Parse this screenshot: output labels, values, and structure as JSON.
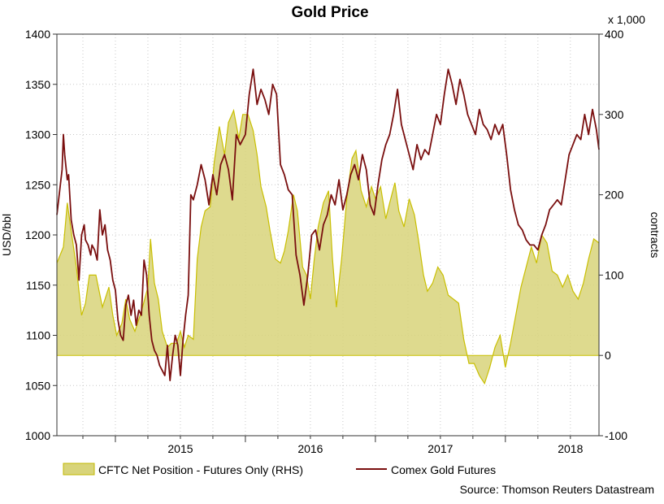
{
  "chart_data": {
    "type": "line+area",
    "title": "Gold Price",
    "ylabel_left": "USD/bbl",
    "ylabel_right": "contracts",
    "right_axis_multiplier": "x 1,000",
    "ylim_left": [
      1000,
      1400
    ],
    "ylim_right": [
      -100,
      400
    ],
    "yticks_left": [
      "1000",
      "1050",
      "1100",
      "1150",
      "1200",
      "1250",
      "1300",
      "1350",
      "1400"
    ],
    "yticks_right": [
      "-100",
      "0",
      "100",
      "200",
      "300",
      "400"
    ],
    "xlim": [
      2014.55,
      2018.72
    ],
    "x_year_labels": [
      "2015",
      "2016",
      "2017",
      "2018"
    ],
    "grid": true,
    "legend_position": "bottom",
    "series": [
      {
        "name": "CFTC Net Position - Futures Only (RHS)",
        "type": "area",
        "axis": "right",
        "color": "#d8d47a",
        "x": [
          2014.55,
          2014.6,
          2014.63,
          2014.66,
          2014.7,
          2014.74,
          2014.77,
          2014.8,
          2014.85,
          2014.9,
          2014.95,
          2014.98,
          2015.01,
          2015.05,
          2015.08,
          2015.11,
          2015.15,
          2015.2,
          2015.25,
          2015.27,
          2015.3,
          2015.33,
          2015.36,
          2015.4,
          2015.43,
          2015.47,
          2015.5,
          2015.53,
          2015.56,
          2015.6,
          2015.63,
          2015.66,
          2015.69,
          2015.73,
          2015.76,
          2015.8,
          2015.84,
          2015.87,
          2015.91,
          2015.95,
          2015.98,
          2016.02,
          2016.06,
          2016.09,
          2016.12,
          2016.16,
          2016.19,
          2016.23,
          2016.27,
          2016.3,
          2016.33,
          2016.37,
          2016.4,
          2016.44,
          2016.47,
          2016.5,
          2016.53,
          2016.56,
          2016.6,
          2016.64,
          2016.67,
          2016.7,
          2016.74,
          2016.78,
          2016.82,
          2016.85,
          2016.89,
          2016.93,
          2016.97,
          2017.0,
          2017.04,
          2017.08,
          2017.11,
          2017.15,
          2017.18,
          2017.22,
          2017.26,
          2017.3,
          2017.33,
          2017.37,
          2017.4,
          2017.44,
          2017.48,
          2017.52,
          2017.56,
          2017.6,
          2017.64,
          2017.68,
          2017.72,
          2017.76,
          2017.8,
          2017.84,
          2017.88,
          2017.92,
          2017.96,
          2018.0,
          2018.04,
          2018.08,
          2018.12,
          2018.16,
          2018.2,
          2018.24,
          2018.28,
          2018.32,
          2018.36,
          2018.4,
          2018.44,
          2018.48,
          2018.52,
          2018.56,
          2018.6,
          2018.64,
          2018.68,
          2018.72
        ],
        "values": [
          115,
          135,
          190,
          155,
          110,
          50,
          65,
          100,
          100,
          60,
          85,
          50,
          25,
          40,
          70,
          45,
          30,
          55,
          85,
          145,
          90,
          70,
          30,
          10,
          15,
          15,
          30,
          10,
          25,
          20,
          120,
          160,
          180,
          185,
          240,
          285,
          250,
          290,
          305,
          270,
          300,
          300,
          280,
          250,
          210,
          185,
          155,
          120,
          115,
          130,
          155,
          200,
          180,
          110,
          100,
          70,
          120,
          160,
          190,
          205,
          120,
          60,
          120,
          195,
          245,
          255,
          205,
          185,
          210,
          195,
          210,
          170,
          190,
          215,
          180,
          160,
          195,
          175,
          145,
          100,
          80,
          90,
          110,
          100,
          75,
          70,
          65,
          20,
          -10,
          -10,
          -25,
          -35,
          -15,
          10,
          25,
          -15,
          15,
          50,
          85,
          110,
          135,
          115,
          150,
          140,
          105,
          100,
          85,
          100,
          80,
          70,
          90,
          120,
          145,
          140
        ]
      },
      {
        "name": "Comex Gold Futures",
        "type": "line",
        "axis": "left",
        "color": "#7a0f0f",
        "x": [
          2014.55,
          2014.59,
          2014.6,
          2014.61,
          2014.63,
          2014.64,
          2014.66,
          2014.68,
          2014.7,
          2014.72,
          2014.74,
          2014.76,
          2014.77,
          2014.79,
          2014.81,
          2014.82,
          2014.84,
          2014.86,
          2014.88,
          2014.9,
          2014.92,
          2014.94,
          2014.96,
          2014.98,
          2015.0,
          2015.02,
          2015.04,
          2015.06,
          2015.08,
          2015.1,
          2015.12,
          2015.14,
          2015.16,
          2015.18,
          2015.2,
          2015.22,
          2015.24,
          2015.26,
          2015.28,
          2015.3,
          2015.32,
          2015.34,
          2015.36,
          2015.38,
          2015.4,
          2015.42,
          2015.44,
          2015.46,
          2015.48,
          2015.5,
          2015.52,
          2015.54,
          2015.56,
          2015.58,
          2015.6,
          2015.63,
          2015.66,
          2015.69,
          2015.72,
          2015.75,
          2015.78,
          2015.81,
          2015.84,
          2015.87,
          2015.9,
          2015.93,
          2015.96,
          2016.0,
          2016.03,
          2016.06,
          2016.09,
          2016.12,
          2016.15,
          2016.18,
          2016.21,
          2016.24,
          2016.27,
          2016.3,
          2016.33,
          2016.36,
          2016.39,
          2016.42,
          2016.45,
          2016.48,
          2016.51,
          2016.54,
          2016.57,
          2016.6,
          2016.63,
          2016.66,
          2016.69,
          2016.72,
          2016.75,
          2016.78,
          2016.81,
          2016.84,
          2016.87,
          2016.9,
          2016.93,
          2016.96,
          2016.99,
          2017.02,
          2017.05,
          2017.08,
          2017.11,
          2017.14,
          2017.17,
          2017.2,
          2017.23,
          2017.26,
          2017.29,
          2017.32,
          2017.35,
          2017.38,
          2017.41,
          2017.44,
          2017.47,
          2017.5,
          2017.53,
          2017.56,
          2017.59,
          2017.62,
          2017.65,
          2017.68,
          2017.71,
          2017.74,
          2017.77,
          2017.8,
          2017.83,
          2017.86,
          2017.89,
          2017.92,
          2017.95,
          2017.98,
          2018.01,
          2018.04,
          2018.07,
          2018.1,
          2018.13,
          2018.16,
          2018.19,
          2018.22,
          2018.25,
          2018.28,
          2018.31,
          2018.34,
          2018.37,
          2018.4,
          2018.43,
          2018.46,
          2018.49,
          2018.52,
          2018.55,
          2018.58,
          2018.61,
          2018.64,
          2018.67,
          2018.7,
          2018.72
        ],
        "values": [
          1220,
          1265,
          1300,
          1280,
          1255,
          1260,
          1215,
          1200,
          1190,
          1155,
          1200,
          1210,
          1195,
          1190,
          1180,
          1190,
          1185,
          1175,
          1225,
          1200,
          1210,
          1185,
          1175,
          1155,
          1145,
          1115,
          1100,
          1095,
          1130,
          1140,
          1120,
          1135,
          1110,
          1125,
          1120,
          1175,
          1160,
          1120,
          1095,
          1085,
          1080,
          1070,
          1065,
          1060,
          1090,
          1055,
          1080,
          1100,
          1090,
          1060,
          1095,
          1120,
          1140,
          1240,
          1235,
          1250,
          1270,
          1255,
          1230,
          1260,
          1240,
          1270,
          1280,
          1265,
          1235,
          1300,
          1290,
          1300,
          1340,
          1365,
          1330,
          1345,
          1335,
          1320,
          1350,
          1340,
          1270,
          1260,
          1245,
          1240,
          1180,
          1160,
          1130,
          1160,
          1200,
          1205,
          1185,
          1210,
          1220,
          1240,
          1230,
          1255,
          1225,
          1240,
          1260,
          1270,
          1255,
          1280,
          1265,
          1230,
          1220,
          1250,
          1275,
          1290,
          1300,
          1320,
          1345,
          1310,
          1295,
          1280,
          1265,
          1290,
          1275,
          1285,
          1280,
          1300,
          1320,
          1310,
          1340,
          1365,
          1350,
          1330,
          1355,
          1340,
          1320,
          1310,
          1300,
          1325,
          1310,
          1305,
          1295,
          1310,
          1300,
          1310,
          1280,
          1245,
          1225,
          1210,
          1205,
          1195,
          1190,
          1190,
          1185,
          1200,
          1210,
          1225,
          1230,
          1235,
          1230,
          1255,
          1280,
          1290,
          1300,
          1295,
          1320,
          1300,
          1325,
          1305,
          1285
        ]
      }
    ]
  },
  "source_text": "Source: Thomson Reuters Datastream"
}
